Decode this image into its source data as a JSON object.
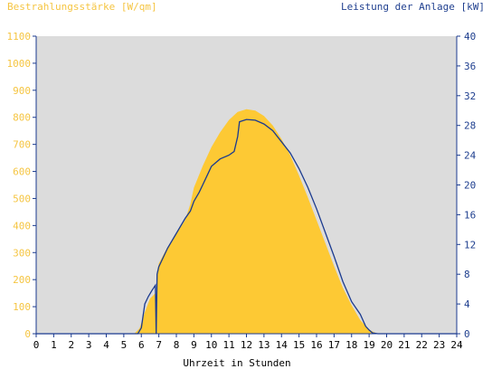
{
  "chart_data": {
    "type": "area",
    "title_left": "Bestrahlungsstärke [W/qm]",
    "title_right": "Leistung der Anlage [kW]",
    "xlabel": "Uhrzeit in Stunden",
    "x_ticks": [
      "0",
      "1",
      "2",
      "3",
      "4",
      "5",
      "6",
      "7",
      "8",
      "9",
      "10",
      "11",
      "12",
      "13",
      "14",
      "15",
      "16",
      "17",
      "18",
      "19",
      "20",
      "21",
      "22",
      "23",
      "24"
    ],
    "xlim": [
      0,
      24
    ],
    "y_left": {
      "lim": [
        0,
        1100
      ],
      "ticks": [
        0,
        100,
        200,
        300,
        400,
        500,
        600,
        700,
        800,
        900,
        1000,
        1100
      ]
    },
    "y_right": {
      "lim": [
        0,
        40
      ],
      "ticks": [
        0,
        4,
        8,
        12,
        16,
        20,
        24,
        28,
        32,
        36,
        40
      ]
    },
    "grid": false,
    "colors": {
      "plot_background": "#dcdcdc",
      "irradiance_fill": "#fdc934",
      "power_line": "#1a3a8f",
      "left_axis_text": "#f5c542",
      "right_axis_text": "#1f3f8f"
    },
    "series": [
      {
        "axis": "left",
        "style": "area",
        "x": [
          0,
          5.6,
          5.9,
          6.2,
          6.5,
          6.8,
          6.85,
          6.9,
          7.0,
          7.5,
          8.0,
          8.5,
          8.8,
          9.0,
          9.5,
          10.0,
          10.5,
          11.0,
          11.5,
          12.0,
          12.5,
          13.0,
          13.5,
          14.0,
          14.5,
          15.0,
          15.5,
          16.0,
          16.5,
          17.0,
          17.5,
          18.0,
          18.5,
          19.0,
          19.3,
          19.5,
          24
        ],
        "y": [
          0,
          0,
          20,
          80,
          130,
          150,
          0,
          230,
          260,
          320,
          370,
          420,
          480,
          540,
          620,
          690,
          745,
          790,
          820,
          830,
          825,
          805,
          770,
          720,
          660,
          585,
          505,
          420,
          335,
          250,
          170,
          105,
          50,
          15,
          5,
          0,
          0
        ]
      },
      {
        "axis": "right",
        "style": "line",
        "x": [
          0,
          5.8,
          6.0,
          6.2,
          6.4,
          6.6,
          6.8,
          6.85,
          6.9,
          7.0,
          7.5,
          8.0,
          8.5,
          8.8,
          9.0,
          9.3,
          9.5,
          9.8,
          10.0,
          10.5,
          11.0,
          11.3,
          11.5,
          11.6,
          12.0,
          12.5,
          13.0,
          13.5,
          14.0,
          14.5,
          15.0,
          15.5,
          16.0,
          16.5,
          17.0,
          17.5,
          18.0,
          18.5,
          18.8,
          19.0,
          19.2,
          19.5,
          24
        ],
        "y": [
          0,
          0,
          0.8,
          4.0,
          5.0,
          5.8,
          6.5,
          0,
          8.0,
          9.0,
          11.5,
          13.5,
          15.5,
          16.5,
          17.8,
          19.0,
          20.0,
          21.5,
          22.5,
          23.5,
          24.0,
          24.5,
          26.5,
          28.5,
          28.8,
          28.7,
          28.2,
          27.3,
          25.8,
          24.3,
          22.2,
          19.7,
          16.8,
          13.6,
          10.4,
          7.0,
          4.3,
          2.6,
          1.0,
          0.5,
          0.1,
          0,
          0
        ]
      }
    ]
  }
}
